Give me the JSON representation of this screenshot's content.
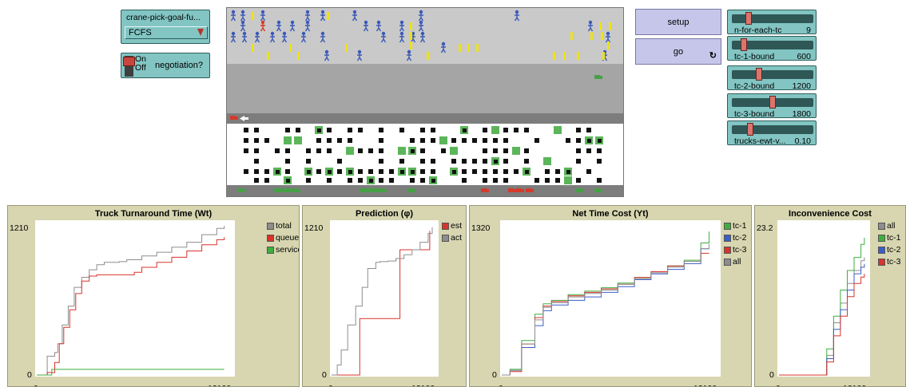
{
  "controls": {
    "chooser": {
      "label": "crane-pick-goal-fu...",
      "value": "FCFS"
    },
    "switch": {
      "on_label": "On",
      "off_label": "Off",
      "name": "negotiation?"
    },
    "buttons": {
      "setup": "setup",
      "go": "go",
      "go_forever_icon": "forever-loop-icon"
    },
    "sliders": [
      {
        "name": "n-for-each-tc",
        "value": "9",
        "fraction": 0.18
      },
      {
        "name": "tc-1-bound",
        "value": "600",
        "fraction": 0.12
      },
      {
        "name": "tc-2-bound",
        "value": "1200",
        "fraction": 0.32
      },
      {
        "name": "tc-3-bound",
        "value": "1800",
        "fraction": 0.5
      },
      {
        "name": "trucks-ewt-v...",
        "value": "0.10",
        "fraction": 0.2
      }
    ]
  },
  "world": {
    "colors": {
      "top_band": "#c9c9c9",
      "mid_band": "#a5a5a5",
      "lane": "#7d7d7d",
      "yard": "#ffffff",
      "bottom_lane": "#7d7d7d",
      "person_blue": "#3a59b8",
      "person_yellow": "#ece21a",
      "person_red": "#d43b2b",
      "container_black": "#111111",
      "container_green": "#5cb55a",
      "truck_red": "#d43b2b",
      "truck_green": "#47a047"
    }
  },
  "plots": [
    {
      "title": "Truck Turnaround Time (Wt)",
      "ymax": "1210",
      "ymin": "0",
      "xmin": "0",
      "xmax": "13100",
      "legend": [
        {
          "label": "total",
          "color": "#8d8d8d"
        },
        {
          "label": "queue",
          "color": "#d8332c"
        },
        {
          "label": "service",
          "color": "#3fae3f"
        }
      ],
      "chart_data": {
        "type": "line",
        "xlim": [
          0,
          13100
        ],
        "ylim": [
          0,
          1210
        ],
        "series": [
          {
            "name": "total",
            "x": [
              0,
              700,
              700,
              1200,
              1400,
              1700,
              2100,
              2500,
              3000,
              3500,
              4000,
              4500,
              5000,
              5500,
              6000,
              7000,
              8000,
              9000,
              10000,
              11000,
              12000,
              12500
            ],
            "y": [
              0,
              60,
              150,
              180,
              250,
              400,
              550,
              700,
              780,
              840,
              880,
              900,
              900,
              905,
              920,
              950,
              980,
              1020,
              1060,
              1120,
              1170,
              1190
            ]
          },
          {
            "name": "queue",
            "x": [
              0,
              700,
              1200,
              1500,
              1800,
              2200,
              2600,
              3000,
              3500,
              4000,
              4500,
              5000,
              6000,
              6500,
              7000,
              8000,
              9000,
              10000,
              11000,
              12000,
              12500
            ],
            "y": [
              0,
              20,
              100,
              250,
              380,
              520,
              650,
              750,
              790,
              800,
              800,
              800,
              800,
              820,
              860,
              900,
              940,
              990,
              1040,
              1080,
              1100
            ]
          },
          {
            "name": "service",
            "x": [
              0,
              700,
              1000,
              12500
            ],
            "y": [
              0,
              0,
              45,
              45
            ]
          }
        ]
      }
    },
    {
      "title": "Prediction (φ)",
      "ymax": "1210",
      "ymin": "0",
      "xmin": "0",
      "xmax": "13100",
      "legend": [
        {
          "label": "est",
          "color": "#d8332c"
        },
        {
          "label": "act",
          "color": "#8d8d8d"
        }
      ],
      "chart_data": {
        "type": "line",
        "xlim": [
          0,
          13100
        ],
        "ylim": [
          0,
          1210
        ],
        "series": [
          {
            "name": "est",
            "x": [
              0,
              3500,
              3500,
              8500,
              8500,
              12200
            ],
            "y": [
              0,
              0,
              450,
              450,
              1000,
              1150
            ]
          },
          {
            "name": "act",
            "x": [
              0,
              700,
              1200,
              2000,
              3000,
              3800,
              4500,
              5500,
              6000,
              7000,
              8000,
              9000,
              10000,
              11000,
              12000,
              12500
            ],
            "y": [
              0,
              80,
              200,
              400,
              550,
              700,
              850,
              900,
              905,
              910,
              930,
              960,
              1000,
              1060,
              1130,
              1180
            ]
          }
        ]
      }
    },
    {
      "title": "Net Time Cost (Yt)",
      "ymax": "1320",
      "ymin": "0",
      "xmin": "0",
      "xmax": "13100",
      "legend": [
        {
          "label": "tc-1",
          "color": "#3fae3f"
        },
        {
          "label": "tc-2",
          "color": "#3a5fc8"
        },
        {
          "label": "tc-3",
          "color": "#d8332c"
        },
        {
          "label": "all",
          "color": "#8d8d8d"
        }
      ],
      "chart_data": {
        "type": "line",
        "xlim": [
          0,
          13100
        ],
        "ylim": [
          0,
          1320
        ],
        "series": [
          {
            "name": "tc-1",
            "x": [
              0,
              500,
              1200,
              2000,
              2500,
              3000,
              4000,
              5000,
              6000,
              7000,
              8000,
              9000,
              10000,
              11000,
              12000,
              12500
            ],
            "y": [
              0,
              50,
              300,
              530,
              620,
              650,
              700,
              730,
              760,
              800,
              850,
              900,
              950,
              1000,
              1150,
              1250
            ]
          },
          {
            "name": "tc-2",
            "x": [
              0,
              500,
              1200,
              2000,
              2500,
              3000,
              4000,
              5000,
              6000,
              7000,
              8000,
              9000,
              10000,
              11000,
              12000,
              12500
            ],
            "y": [
              0,
              40,
              240,
              430,
              560,
              610,
              650,
              680,
              720,
              770,
              830,
              880,
              920,
              970,
              1100,
              1120
            ]
          },
          {
            "name": "tc-3",
            "x": [
              0,
              500,
              1200,
              2000,
              2500,
              3000,
              4000,
              5000,
              6000,
              7000,
              8000,
              9000,
              10000,
              11000,
              12000,
              12500
            ],
            "y": [
              0,
              30,
              270,
              500,
              600,
              640,
              690,
              720,
              750,
              790,
              850,
              900,
              950,
              990,
              1060,
              1060
            ]
          },
          {
            "name": "all",
            "x": [
              0,
              500,
              1200,
              2000,
              2500,
              3000,
              4000,
              5000,
              6000,
              7000,
              8000,
              9000,
              10000,
              11000,
              12000,
              12500
            ],
            "y": [
              0,
              40,
              270,
              480,
              590,
              630,
              680,
              710,
              740,
              790,
              840,
              890,
              940,
              990,
              1100,
              1140
            ]
          }
        ]
      }
    },
    {
      "title": "Inconvenience Cost",
      "ymax": "23.2",
      "ymin": "0",
      "xmin": "0",
      "xmax": "13100",
      "legend": [
        {
          "label": "all",
          "color": "#8d8d8d"
        },
        {
          "label": "tc-1",
          "color": "#3fae3f"
        },
        {
          "label": "tc-2",
          "color": "#3a5fc8"
        },
        {
          "label": "tc-3",
          "color": "#d8332c"
        }
      ],
      "chart_data": {
        "type": "line",
        "xlim": [
          0,
          13100
        ],
        "ylim": [
          0,
          23.2
        ],
        "series": [
          {
            "name": "all",
            "x": [
              0,
              6000,
              7000,
              8000,
              9000,
              10000,
              11000,
              12000,
              12500
            ],
            "y": [
              0,
              0,
              3,
              8,
              11,
              14,
              16,
              17.5,
              18
            ]
          },
          {
            "name": "tc-1",
            "x": [
              0,
              6000,
              7000,
              8000,
              9000,
              10000,
              11000,
              12000,
              12500
            ],
            "y": [
              0,
              0,
              4,
              9,
              13,
              16,
              18,
              20,
              21
            ]
          },
          {
            "name": "tc-2",
            "x": [
              0,
              6000,
              7000,
              8000,
              9000,
              10000,
              11000,
              12000,
              12500
            ],
            "y": [
              0,
              0,
              2.5,
              7,
              10,
              13,
              15.5,
              16.5,
              17
            ]
          },
          {
            "name": "tc-3",
            "x": [
              0,
              6000,
              7000,
              8000,
              9000,
              10000,
              11000,
              12000,
              12500
            ],
            "y": [
              0,
              0,
              2,
              6,
              9,
              12,
              14,
              15,
              15.5
            ]
          }
        ]
      }
    }
  ]
}
